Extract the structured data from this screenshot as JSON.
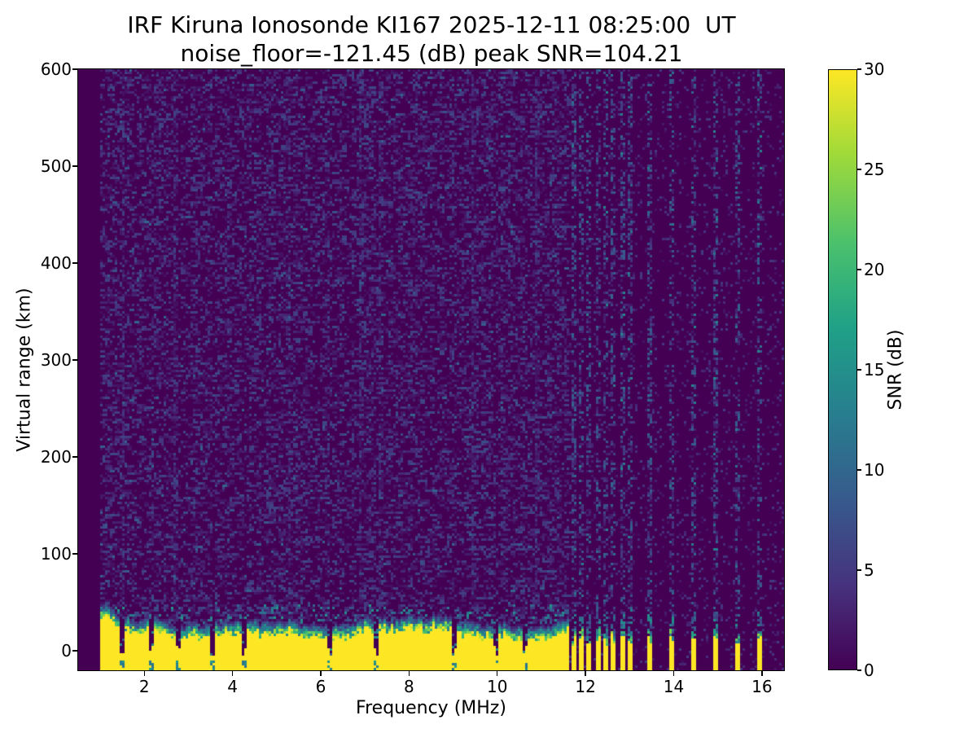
{
  "chart_data": {
    "type": "heatmap",
    "title": "IRF Kiruna Ionosonde KI167 2025-12-11 08:25:00  UT",
    "subtitle": "noise_floor=-121.45 (dB) peak SNR=104.21",
    "station": "KI167",
    "timestamp_ut": "2025-12-11 08:25:00 UT",
    "noise_floor_db": -121.45,
    "peak_snr_db": 104.21,
    "xlabel": "Frequency (MHz)",
    "ylabel": "Virtual range (km)",
    "xlim": [
      0.5,
      16.5
    ],
    "ylim": [
      -20,
      600
    ],
    "xticks": [
      2,
      4,
      6,
      8,
      10,
      12,
      14,
      16
    ],
    "yticks": [
      0,
      100,
      200,
      300,
      400,
      500,
      600
    ],
    "grid": false,
    "colorbar": {
      "label": "SNR (dB)",
      "min": 0,
      "max": 30,
      "ticks": [
        0,
        5,
        10,
        15,
        20,
        25,
        30
      ],
      "colormap": "viridis"
    },
    "colormap_stops": [
      [
        0.0,
        "#440154"
      ],
      [
        0.14,
        "#46327e"
      ],
      [
        0.29,
        "#365c8d"
      ],
      [
        0.43,
        "#277f8e"
      ],
      [
        0.57,
        "#1fa187"
      ],
      [
        0.71,
        "#4ac16d"
      ],
      [
        0.86,
        "#a0da39"
      ],
      [
        1.0,
        "#fde725"
      ]
    ],
    "data_model": {
      "seed": 167,
      "data_freq_start_mhz": 1.0,
      "ground_clutter": {
        "freq_end_mhz": 11.62,
        "yellow_top_km_base": 16,
        "yellow_top_km_jitter": 9,
        "low_freq_boost_below_mhz": 1.5,
        "low_freq_boost_km": 18,
        "transition_km": 17,
        "speckle_top_km": 50
      },
      "notch_freqs_mhz": [
        1.52,
        2.17,
        2.79,
        3.55,
        4.27,
        6.22,
        7.26,
        9.03,
        9.97,
        10.63
      ],
      "interference_freqs_mhz": [
        11.72,
        11.9,
        12.09,
        12.27,
        12.46,
        12.64,
        12.83,
        13.01,
        13.46,
        13.95,
        14.44,
        14.93,
        15.43,
        15.95
      ],
      "interference": {
        "bar_top_km_min": 6,
        "bar_top_km_max": 18,
        "bar_transition_km": 7,
        "dash_top_km": 38,
        "column_dash_density_min": 0.3,
        "column_dash_density_max": 0.52
      },
      "background_noise": {
        "left_density": 0.55,
        "left_max_db": 6.5,
        "right_density": 0.1,
        "right_max_db": 5.5
      }
    }
  }
}
